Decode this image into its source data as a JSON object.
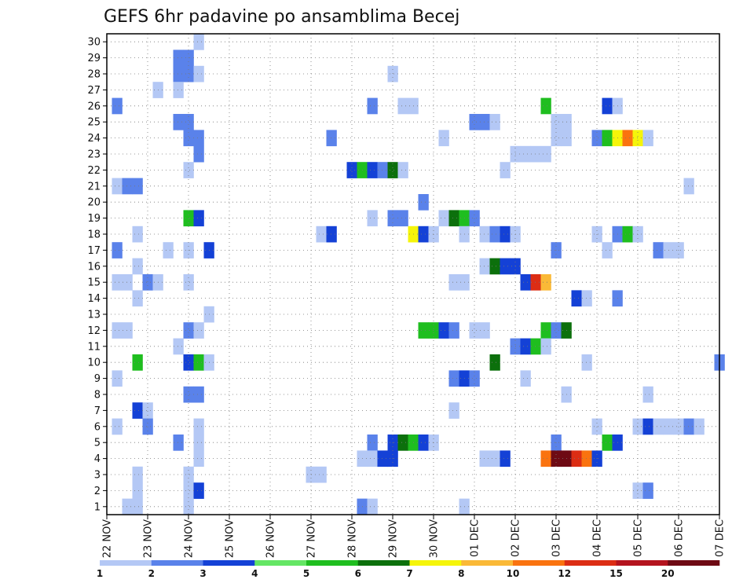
{
  "chart_data": {
    "type": "heatmap",
    "title": "GEFS 6hr padavine po ansamblima Becej",
    "xlabel": "",
    "ylabel": "",
    "x_tick_labels": [
      "22 NOV",
      "23 NOV",
      "24 NOV",
      "25 NOV",
      "26 NOV",
      "27 NOV",
      "28 NOV",
      "29 NOV",
      "30 NOV",
      "01 DEC",
      "02 DEC",
      "03 DEC",
      "04 DEC",
      "05 DEC",
      "06 DEC",
      "07 DEC"
    ],
    "y_tick_labels": [
      "1",
      "2",
      "3",
      "4",
      "5",
      "6",
      "7",
      "8",
      "9",
      "10",
      "11",
      "12",
      "13",
      "14",
      "15",
      "16",
      "17",
      "18",
      "19",
      "20",
      "21",
      "22",
      "23",
      "24",
      "25",
      "26",
      "27",
      "28",
      "29",
      "30"
    ],
    "time_steps": 61,
    "steps_per_day": 4,
    "members": 30,
    "grid": true,
    "colorbar_labels": [
      "1",
      "2",
      "3",
      "4",
      "5",
      "6",
      "7",
      "8",
      "10",
      "12",
      "15",
      "20"
    ],
    "colorbar_colors": [
      "#b4c8f5",
      "#5a82ea",
      "#1441d6",
      "#64e664",
      "#1fbe1f",
      "#0c700c",
      "#f5f50a",
      "#fab937",
      "#fa730f",
      "#dc2d14",
      "#b4141e",
      "#6e0a14"
    ],
    "cells": [
      [
        9,
        30,
        1
      ],
      [
        7,
        29,
        2
      ],
      [
        8,
        29,
        2
      ],
      [
        7,
        28,
        2
      ],
      [
        8,
        28,
        2
      ],
      [
        9,
        28,
        1
      ],
      [
        28,
        28,
        1
      ],
      [
        5,
        27,
        1
      ],
      [
        7,
        27,
        1
      ],
      [
        1,
        26,
        2
      ],
      [
        26,
        26,
        2
      ],
      [
        29,
        26,
        1
      ],
      [
        30,
        26,
        1
      ],
      [
        43,
        26,
        5
      ],
      [
        49,
        26,
        3
      ],
      [
        50,
        26,
        1
      ],
      [
        7,
        25,
        2
      ],
      [
        8,
        25,
        2
      ],
      [
        36,
        25,
        2
      ],
      [
        37,
        25,
        2
      ],
      [
        38,
        25,
        1
      ],
      [
        44,
        25,
        1
      ],
      [
        45,
        25,
        1
      ],
      [
        8,
        24,
        2
      ],
      [
        9,
        24,
        2
      ],
      [
        22,
        24,
        2
      ],
      [
        33,
        24,
        1
      ],
      [
        44,
        24,
        1
      ],
      [
        45,
        24,
        1
      ],
      [
        48,
        24,
        2
      ],
      [
        49,
        24,
        5
      ],
      [
        50,
        24,
        7
      ],
      [
        51,
        24,
        9
      ],
      [
        52,
        24,
        7
      ],
      [
        53,
        24,
        1
      ],
      [
        9,
        23,
        2
      ],
      [
        40,
        23,
        1
      ],
      [
        41,
        23,
        1
      ],
      [
        42,
        23,
        1
      ],
      [
        43,
        23,
        1
      ],
      [
        8,
        22,
        1
      ],
      [
        24,
        22,
        3
      ],
      [
        25,
        22,
        5
      ],
      [
        26,
        22,
        3
      ],
      [
        27,
        22,
        2
      ],
      [
        28,
        22,
        6
      ],
      [
        29,
        22,
        1
      ],
      [
        39,
        22,
        1
      ],
      [
        1,
        21,
        1
      ],
      [
        2,
        21,
        2
      ],
      [
        3,
        21,
        2
      ],
      [
        57,
        21,
        1
      ],
      [
        31,
        20,
        2
      ],
      [
        8,
        19,
        5
      ],
      [
        9,
        19,
        3
      ],
      [
        26,
        19,
        1
      ],
      [
        28,
        19,
        2
      ],
      [
        29,
        19,
        2
      ],
      [
        33,
        19,
        1
      ],
      [
        34,
        19,
        6
      ],
      [
        35,
        19,
        5
      ],
      [
        36,
        19,
        2
      ],
      [
        3,
        18,
        1
      ],
      [
        21,
        18,
        1
      ],
      [
        22,
        18,
        3
      ],
      [
        30,
        18,
        7
      ],
      [
        31,
        18,
        3
      ],
      [
        32,
        18,
        1
      ],
      [
        35,
        18,
        1
      ],
      [
        37,
        18,
        1
      ],
      [
        38,
        18,
        2
      ],
      [
        39,
        18,
        3
      ],
      [
        40,
        18,
        1
      ],
      [
        48,
        18,
        1
      ],
      [
        50,
        18,
        2
      ],
      [
        51,
        18,
        5
      ],
      [
        52,
        18,
        1
      ],
      [
        1,
        17,
        2
      ],
      [
        6,
        17,
        1
      ],
      [
        8,
        17,
        1
      ],
      [
        10,
        17,
        3
      ],
      [
        44,
        17,
        2
      ],
      [
        49,
        17,
        1
      ],
      [
        54,
        17,
        2
      ],
      [
        55,
        17,
        1
      ],
      [
        56,
        17,
        1
      ],
      [
        3,
        16,
        1
      ],
      [
        37,
        16,
        1
      ],
      [
        38,
        16,
        6
      ],
      [
        39,
        16,
        3
      ],
      [
        40,
        16,
        3
      ],
      [
        1,
        15,
        1
      ],
      [
        2,
        15,
        1
      ],
      [
        4,
        15,
        2
      ],
      [
        5,
        15,
        1
      ],
      [
        8,
        15,
        1
      ],
      [
        34,
        15,
        1
      ],
      [
        35,
        15,
        1
      ],
      [
        41,
        15,
        3
      ],
      [
        42,
        15,
        10
      ],
      [
        43,
        15,
        8
      ],
      [
        3,
        14,
        1
      ],
      [
        46,
        14,
        3
      ],
      [
        47,
        14,
        1
      ],
      [
        50,
        14,
        2
      ],
      [
        10,
        13,
        1
      ],
      [
        1,
        12,
        1
      ],
      [
        2,
        12,
        1
      ],
      [
        8,
        12,
        2
      ],
      [
        9,
        12,
        1
      ],
      [
        31,
        12,
        5
      ],
      [
        32,
        12,
        5
      ],
      [
        33,
        12,
        3
      ],
      [
        34,
        12,
        2
      ],
      [
        36,
        12,
        1
      ],
      [
        37,
        12,
        1
      ],
      [
        43,
        12,
        5
      ],
      [
        44,
        12,
        2
      ],
      [
        45,
        12,
        6
      ],
      [
        7,
        11,
        1
      ],
      [
        40,
        11,
        2
      ],
      [
        41,
        11,
        3
      ],
      [
        42,
        11,
        5
      ],
      [
        43,
        11,
        1
      ],
      [
        3,
        10,
        5
      ],
      [
        8,
        10,
        3
      ],
      [
        9,
        10,
        5
      ],
      [
        10,
        10,
        1
      ],
      [
        38,
        10,
        6
      ],
      [
        47,
        10,
        1
      ],
      [
        60,
        10,
        2
      ],
      [
        1,
        9,
        1
      ],
      [
        34,
        9,
        2
      ],
      [
        35,
        9,
        3
      ],
      [
        36,
        9,
        2
      ],
      [
        41,
        9,
        1
      ],
      [
        8,
        8,
        2
      ],
      [
        9,
        8,
        2
      ],
      [
        45,
        8,
        1
      ],
      [
        53,
        8,
        1
      ],
      [
        3,
        7,
        3
      ],
      [
        4,
        7,
        1
      ],
      [
        34,
        7,
        1
      ],
      [
        1,
        6,
        1
      ],
      [
        4,
        6,
        2
      ],
      [
        9,
        6,
        1
      ],
      [
        48,
        6,
        1
      ],
      [
        52,
        6,
        1
      ],
      [
        53,
        6,
        3
      ],
      [
        54,
        6,
        1
      ],
      [
        55,
        6,
        1
      ],
      [
        56,
        6,
        1
      ],
      [
        57,
        6,
        2
      ],
      [
        58,
        6,
        1
      ],
      [
        7,
        5,
        2
      ],
      [
        9,
        5,
        1
      ],
      [
        26,
        5,
        2
      ],
      [
        28,
        5,
        3
      ],
      [
        29,
        5,
        6
      ],
      [
        30,
        5,
        5
      ],
      [
        31,
        5,
        3
      ],
      [
        32,
        5,
        1
      ],
      [
        44,
        5,
        2
      ],
      [
        49,
        5,
        5
      ],
      [
        50,
        5,
        3
      ],
      [
        9,
        4,
        1
      ],
      [
        25,
        4,
        1
      ],
      [
        26,
        4,
        1
      ],
      [
        27,
        4,
        3
      ],
      [
        28,
        4,
        3
      ],
      [
        37,
        4,
        1
      ],
      [
        38,
        4,
        1
      ],
      [
        39,
        4,
        3
      ],
      [
        43,
        4,
        9
      ],
      [
        44,
        4,
        12
      ],
      [
        45,
        4,
        12
      ],
      [
        46,
        4,
        10
      ],
      [
        47,
        4,
        9
      ],
      [
        48,
        4,
        3
      ],
      [
        3,
        3,
        1
      ],
      [
        8,
        3,
        1
      ],
      [
        20,
        3,
        1
      ],
      [
        21,
        3,
        1
      ],
      [
        3,
        2,
        1
      ],
      [
        8,
        2,
        1
      ],
      [
        9,
        2,
        3
      ],
      [
        52,
        2,
        1
      ],
      [
        53,
        2,
        2
      ],
      [
        2,
        1,
        1
      ],
      [
        3,
        1,
        1
      ],
      [
        8,
        1,
        1
      ],
      [
        25,
        1,
        2
      ],
      [
        26,
        1,
        1
      ],
      [
        35,
        1,
        1
      ]
    ]
  }
}
